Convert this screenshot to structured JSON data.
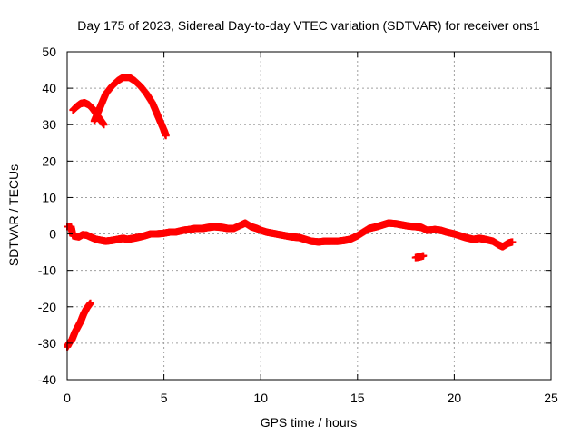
{
  "chart_data": {
    "type": "scatter",
    "title": "Day 175 of 2023, Sidereal Day-to-day VTEC variation (SDTVAR) for receiver ons1",
    "xlabel": "GPS time / hours",
    "ylabel": "SDTVAR / TECUs",
    "xlim": [
      0,
      25
    ],
    "ylim": [
      -40,
      50
    ],
    "xticks": [
      0,
      5,
      10,
      15,
      20,
      25
    ],
    "yticks": [
      -40,
      -30,
      -20,
      -10,
      0,
      10,
      20,
      30,
      40,
      50
    ],
    "grid": true,
    "marker": "plus",
    "color": "#ff0000",
    "series": [
      {
        "name": "baseline",
        "points": [
          [
            0.0,
            2.0
          ],
          [
            0.2,
            2.0
          ],
          [
            0.3,
            -0.5
          ],
          [
            0.6,
            -0.8
          ],
          [
            0.8,
            -0.2
          ],
          [
            1.0,
            -0.3
          ],
          [
            1.2,
            -0.8
          ],
          [
            1.5,
            -1.5
          ],
          [
            1.8,
            -1.8
          ],
          [
            2.0,
            -2.0
          ],
          [
            2.3,
            -1.8
          ],
          [
            2.6,
            -1.5
          ],
          [
            2.9,
            -1.2
          ],
          [
            3.1,
            -1.5
          ],
          [
            3.3,
            -1.3
          ],
          [
            3.6,
            -1.0
          ],
          [
            4.0,
            -0.5
          ],
          [
            4.3,
            0.0
          ],
          [
            4.6,
            0.0
          ],
          [
            5.0,
            0.2
          ],
          [
            5.3,
            0.5
          ],
          [
            5.6,
            0.5
          ],
          [
            6.0,
            1.0
          ],
          [
            6.3,
            1.2
          ],
          [
            6.6,
            1.5
          ],
          [
            7.0,
            1.5
          ],
          [
            7.3,
            1.8
          ],
          [
            7.6,
            2.0
          ],
          [
            8.0,
            1.8
          ],
          [
            8.3,
            1.5
          ],
          [
            8.6,
            1.5
          ],
          [
            9.0,
            2.5
          ],
          [
            9.2,
            3.0
          ],
          [
            9.5,
            2.0
          ],
          [
            9.8,
            1.5
          ],
          [
            10.0,
            1.0
          ],
          [
            10.3,
            0.5
          ],
          [
            10.6,
            0.2
          ],
          [
            11.0,
            -0.2
          ],
          [
            11.3,
            -0.5
          ],
          [
            11.6,
            -0.8
          ],
          [
            12.0,
            -1.0
          ],
          [
            12.3,
            -1.5
          ],
          [
            12.6,
            -2.0
          ],
          [
            13.0,
            -2.2
          ],
          [
            13.3,
            -2.0
          ],
          [
            13.6,
            -2.0
          ],
          [
            14.0,
            -2.0
          ],
          [
            14.3,
            -1.8
          ],
          [
            14.6,
            -1.5
          ],
          [
            15.0,
            -0.5
          ],
          [
            15.3,
            0.5
          ],
          [
            15.6,
            1.5
          ],
          [
            16.0,
            2.0
          ],
          [
            16.3,
            2.5
          ],
          [
            16.6,
            3.0
          ],
          [
            17.0,
            2.8
          ],
          [
            17.3,
            2.5
          ],
          [
            17.6,
            2.2
          ],
          [
            18.0,
            2.0
          ],
          [
            18.3,
            1.8
          ],
          [
            18.6,
            1.0
          ],
          [
            19.0,
            1.2
          ],
          [
            19.3,
            1.0
          ],
          [
            19.6,
            0.5
          ],
          [
            20.0,
            0.0
          ],
          [
            20.3,
            -0.5
          ],
          [
            20.6,
            -1.0
          ],
          [
            21.0,
            -1.5
          ],
          [
            21.3,
            -1.2
          ],
          [
            21.6,
            -1.5
          ],
          [
            22.0,
            -2.0
          ],
          [
            22.3,
            -3.0
          ],
          [
            22.5,
            -3.5
          ],
          [
            22.8,
            -2.5
          ],
          [
            23.0,
            -2.2
          ]
        ]
      },
      {
        "name": "isolated",
        "points": [
          [
            18.0,
            -6.5
          ],
          [
            18.2,
            -6.3
          ],
          [
            18.4,
            -6.0
          ]
        ]
      },
      {
        "name": "arc-small",
        "points": [
          [
            0.3,
            34.0
          ],
          [
            0.5,
            35.0
          ],
          [
            0.7,
            35.8
          ],
          [
            0.9,
            36.0
          ],
          [
            1.1,
            35.5
          ],
          [
            1.3,
            34.5
          ],
          [
            1.5,
            33.0
          ],
          [
            1.7,
            31.5
          ],
          [
            1.9,
            30.0
          ]
        ]
      },
      {
        "name": "arc-large",
        "points": [
          [
            1.4,
            31.0
          ],
          [
            1.6,
            33.5
          ],
          [
            1.8,
            36.0
          ],
          [
            2.0,
            38.5
          ],
          [
            2.3,
            40.5
          ],
          [
            2.6,
            42.0
          ],
          [
            2.9,
            43.0
          ],
          [
            3.2,
            43.0
          ],
          [
            3.5,
            42.0
          ],
          [
            3.8,
            40.5
          ],
          [
            4.1,
            38.5
          ],
          [
            4.4,
            36.0
          ],
          [
            4.6,
            33.5
          ],
          [
            4.8,
            31.0
          ],
          [
            5.0,
            28.5
          ],
          [
            5.1,
            27.0
          ]
        ]
      },
      {
        "name": "rising",
        "points": [
          [
            0.0,
            -31.0
          ],
          [
            0.1,
            -30.0
          ],
          [
            0.25,
            -29.0
          ],
          [
            0.4,
            -27.0
          ],
          [
            0.55,
            -25.5
          ],
          [
            0.7,
            -24.0
          ],
          [
            0.85,
            -22.0
          ],
          [
            1.0,
            -20.5
          ],
          [
            1.2,
            -19.0
          ]
        ]
      }
    ]
  }
}
